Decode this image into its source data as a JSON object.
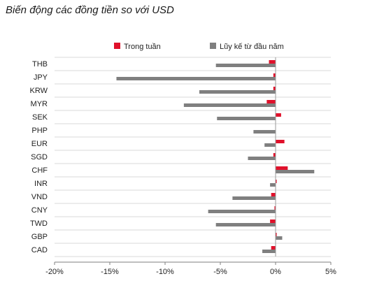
{
  "chart_data": {
    "type": "bar",
    "orientation": "horizontal",
    "title": "Biến động các đồng tiền so với USD",
    "xlabel": "",
    "ylabel": "",
    "xlim": [
      -20,
      5
    ],
    "xticks": [
      -20,
      -15,
      -10,
      -5,
      0,
      5
    ],
    "xtick_labels": [
      "-20%",
      "-15%",
      "-10%",
      "-5%",
      "0%",
      "5%"
    ],
    "categories": [
      "THB",
      "JPY",
      "KRW",
      "MYR",
      "SEK",
      "PHP",
      "EUR",
      "SGD",
      "CHF",
      "INR",
      "VND",
      "CNY",
      "TWD",
      "GBP",
      "CAD"
    ],
    "series": [
      {
        "name": "Trong tuần",
        "color": "#e0112b",
        "values": [
          -0.6,
          -0.2,
          -0.2,
          -0.8,
          0.5,
          0.0,
          0.8,
          -0.2,
          1.1,
          0.1,
          -0.4,
          -0.1,
          -0.5,
          0.1,
          -0.4
        ]
      },
      {
        "name": "Lũy kế từ đầu năm",
        "color": "#7f7f7f",
        "values": [
          -5.4,
          -14.4,
          -6.9,
          -8.3,
          -5.3,
          -2.0,
          -1.0,
          -2.5,
          3.5,
          -0.5,
          -3.9,
          -6.1,
          -5.4,
          0.6,
          -1.2
        ]
      }
    ],
    "legend_position": "top-right",
    "grid": false
  }
}
